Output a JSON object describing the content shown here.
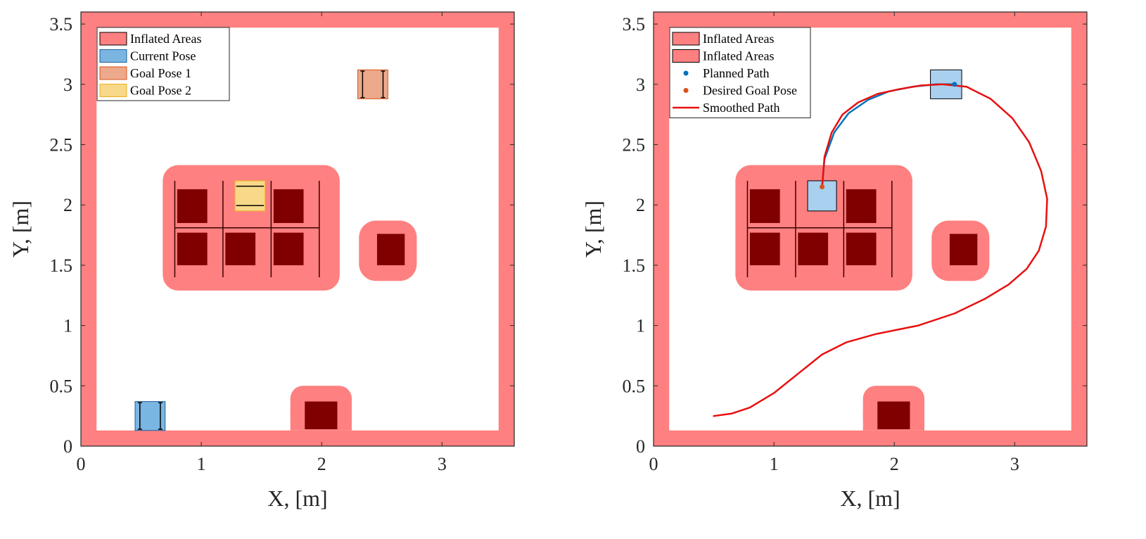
{
  "colors": {
    "inflated": "#ff8080",
    "obstacle": "#800000",
    "current_pose": "#7ab6e1",
    "current_pose_edge": "#1f5f9a",
    "goal1": "#eca98c",
    "goal1_edge": "#d95319",
    "goal2": "#f8d98a",
    "goal2_edge": "#edb120",
    "planned_path": "#0072bd",
    "goal_marker": "#d95319",
    "smoothed_path": "#e81010",
    "axis": "#262626"
  },
  "chart_data": [
    {
      "type": "map",
      "xlabel": "X, [m]",
      "ylabel": "Y, [m]",
      "xlim": [
        0,
        3.6
      ],
      "ylim": [
        0,
        3.6
      ],
      "xticks": [
        0,
        1,
        2,
        3
      ],
      "yticks": [
        0,
        0.5,
        1,
        1.5,
        2,
        2.5,
        3,
        3.5
      ],
      "xtick_labels": [
        "0",
        "1",
        "2",
        "3"
      ],
      "ytick_labels": [
        "0",
        "0.5",
        "1",
        "1.5",
        "2",
        "2.5",
        "3",
        "3.5"
      ],
      "legend": [
        "Inflated Areas",
        "Current Pose",
        "Goal Pose 1",
        "Goal Pose 2"
      ],
      "legend_position": "top-left",
      "current_pose": {
        "x": [
          0.45,
          0.7
        ],
        "y": [
          0.13,
          0.37
        ]
      },
      "goal_pose_1": {
        "x": [
          2.3,
          2.55
        ],
        "y": [
          2.88,
          3.12
        ]
      },
      "goal_pose_2": {
        "x": [
          1.28,
          1.53
        ],
        "y": [
          1.95,
          2.2
        ]
      }
    },
    {
      "type": "map",
      "xlabel": "X, [m]",
      "ylabel": "Y, [m]",
      "xlim": [
        0,
        3.6
      ],
      "ylim": [
        0,
        3.6
      ],
      "xticks": [
        0,
        1,
        2,
        3
      ],
      "yticks": [
        0,
        0.5,
        1,
        1.5,
        2,
        2.5,
        3,
        3.5
      ],
      "xtick_labels": [
        "0",
        "1",
        "2",
        "3"
      ],
      "ytick_labels": [
        "0",
        "0.5",
        "1",
        "1.5",
        "2",
        "2.5",
        "3",
        "3.5"
      ],
      "legend": [
        "Inflated Areas",
        "Inflated Areas",
        "Planned Path",
        "Desired Goal Pose",
        "Smoothed Path"
      ],
      "legend_position": "top-left",
      "start_pose": {
        "x": [
          1.28,
          1.52
        ],
        "y": [
          1.95,
          2.2
        ]
      },
      "goal_pose": {
        "x": [
          2.3,
          2.56
        ],
        "y": [
          2.88,
          3.12
        ]
      },
      "planned_path": {
        "x": [
          1.4,
          1.42,
          1.5,
          1.62,
          1.78,
          1.95,
          2.15,
          2.35,
          2.5
        ],
        "y": [
          2.15,
          2.38,
          2.6,
          2.76,
          2.87,
          2.94,
          2.98,
          3.0,
          3.0
        ]
      },
      "desired_goal_markers": [
        {
          "x": 1.4,
          "y": 2.15
        },
        {
          "x": 2.5,
          "y": 3.0
        }
      ],
      "smoothed_path": {
        "x": [
          1.4,
          1.42,
          1.48,
          1.57,
          1.7,
          1.86,
          2.04,
          2.22,
          2.4,
          2.6,
          2.8,
          2.98,
          3.12,
          3.22,
          3.27,
          3.26,
          3.2,
          3.1,
          2.95,
          2.75,
          2.5,
          2.2,
          1.85,
          1.6,
          1.4,
          1.2,
          1.0,
          0.8,
          0.65,
          0.5
        ],
        "y": [
          2.15,
          2.4,
          2.6,
          2.75,
          2.85,
          2.92,
          2.96,
          2.99,
          3.0,
          2.98,
          2.88,
          2.72,
          2.52,
          2.28,
          2.05,
          1.82,
          1.62,
          1.47,
          1.34,
          1.22,
          1.1,
          1.0,
          0.93,
          0.86,
          0.76,
          0.6,
          0.44,
          0.32,
          0.27,
          0.25
        ]
      }
    }
  ]
}
